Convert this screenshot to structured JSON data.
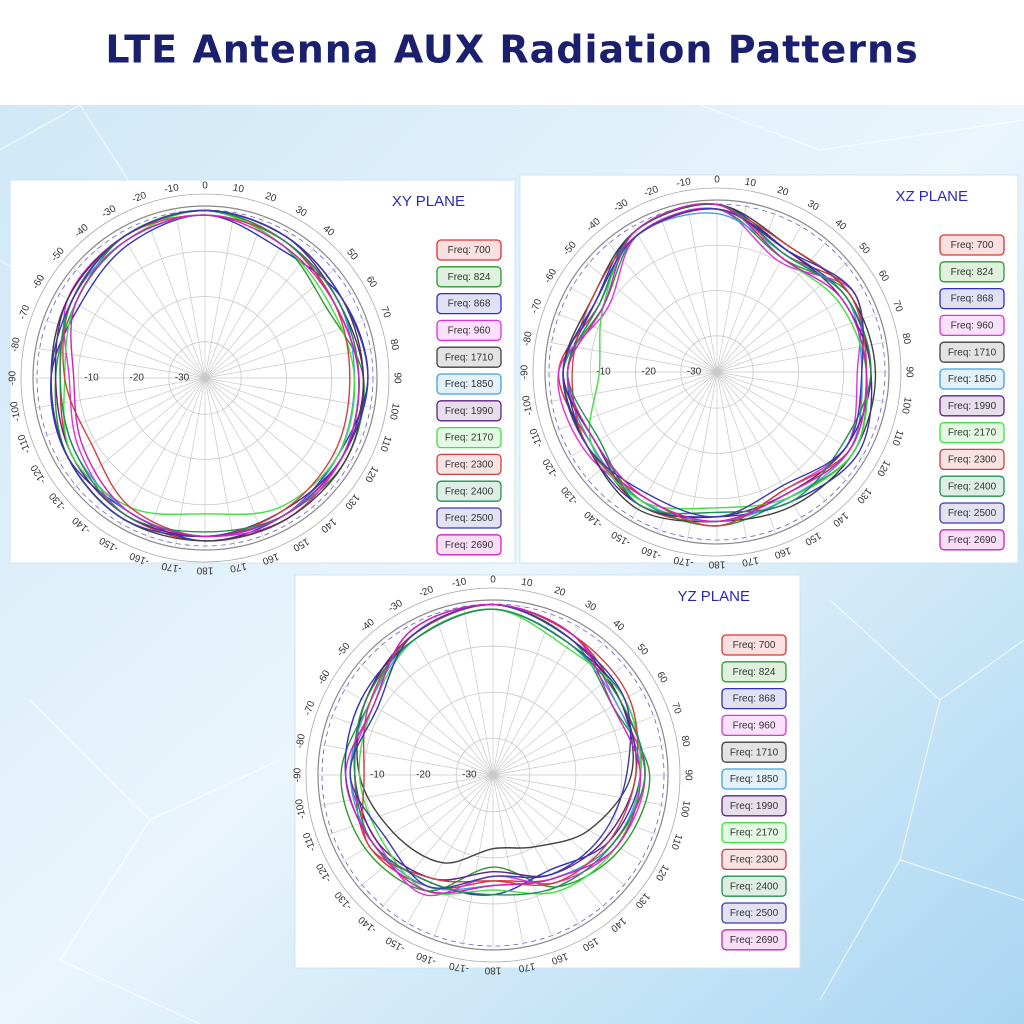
{
  "title": "LTE Antenna AUX Radiation Patterns",
  "chart_data": [
    {
      "type": "polar",
      "title": "XY PLANE",
      "legend": "right",
      "rlim": [
        -38,
        0
      ],
      "rticks": [
        -30,
        -20,
        -10
      ],
      "thetaticks": [
        0,
        10,
        20,
        30,
        40,
        50,
        60,
        70,
        80,
        90,
        100,
        110,
        120,
        130,
        140,
        150,
        160,
        170,
        180,
        -170,
        -160,
        -150,
        -140,
        -130,
        -120,
        -110,
        -100,
        -90,
        -80,
        -70,
        -60,
        -50,
        -40,
        -30,
        -20,
        -10
      ],
      "x": [
        0,
        30,
        60,
        90,
        120,
        150,
        180,
        210,
        240,
        270,
        300,
        330
      ],
      "series": [
        {
          "name": "Freq: 700",
          "color": "#e03030",
          "values": [
            -1,
            -3,
            -5,
            -4,
            -3,
            -2,
            -2,
            -3,
            -4,
            -6,
            -4,
            -2
          ]
        },
        {
          "name": "Freq: 824",
          "color": "#2a9a2a",
          "values": [
            -1,
            -4,
            -7,
            -3,
            -2,
            -3,
            -3,
            -2,
            -3,
            -5,
            -5,
            -2
          ]
        },
        {
          "name": "Freq: 868",
          "color": "#3030c0",
          "values": [
            -2,
            -5,
            -3,
            -2,
            -4,
            -3,
            -2,
            -4,
            -3,
            -4,
            -6,
            -4
          ]
        },
        {
          "name": "Freq: 960",
          "color": "#e030e0",
          "values": [
            -1,
            -3,
            -4,
            -4,
            -3,
            -2,
            -3,
            -3,
            -6,
            -8,
            -3,
            -2
          ]
        },
        {
          "name": "Freq: 1710",
          "color": "#404040",
          "values": [
            -1,
            -2,
            -3,
            -3,
            -2,
            -2,
            -2,
            -2,
            -3,
            -4,
            -3,
            -2
          ]
        },
        {
          "name": "Freq: 1850",
          "color": "#40a0e0",
          "values": [
            -2,
            -3,
            -4,
            -5,
            -4,
            -3,
            -3,
            -4,
            -5,
            -6,
            -4,
            -3
          ]
        },
        {
          "name": "Freq: 1990",
          "color": "#602080",
          "values": [
            -1,
            -2,
            -4,
            -3,
            -3,
            -4,
            -3,
            -3,
            -4,
            -5,
            -3,
            -2
          ]
        },
        {
          "name": "Freq: 2170",
          "color": "#40e040",
          "values": [
            -1,
            -4,
            -6,
            -5,
            -4,
            -5,
            -8,
            -5,
            -4,
            -7,
            -5,
            -3
          ]
        },
        {
          "name": "Freq: 2300",
          "color": "#d04040",
          "values": [
            -2,
            -3,
            -5,
            -6,
            -5,
            -4,
            -3,
            -5,
            -9,
            -7,
            -4,
            -2
          ]
        },
        {
          "name": "Freq: 2400",
          "color": "#209050",
          "values": [
            -1,
            -3,
            -4,
            -4,
            -3,
            -3,
            -4,
            -3,
            -5,
            -6,
            -4,
            -2
          ]
        },
        {
          "name": "Freq: 2500",
          "color": "#3a3ab0",
          "values": [
            -1,
            -2,
            -3,
            -2,
            -3,
            -3,
            -3,
            -2,
            -3,
            -4,
            -4,
            -2
          ]
        },
        {
          "name": "Freq: 2690",
          "color": "#d020c0",
          "values": [
            -2,
            -4,
            -5,
            -4,
            -3,
            -3,
            -3,
            -4,
            -7,
            -9,
            -5,
            -3
          ]
        }
      ]
    },
    {
      "type": "polar",
      "title": "XZ PLANE",
      "legend": "right",
      "rlim": [
        -38,
        0
      ],
      "rticks": [
        -30,
        -20,
        -10
      ],
      "thetaticks": [
        0,
        10,
        20,
        30,
        40,
        50,
        60,
        70,
        80,
        90,
        100,
        110,
        120,
        130,
        140,
        150,
        160,
        170,
        180,
        -170,
        -160,
        -150,
        -140,
        -130,
        -120,
        -110,
        -100,
        -90,
        -80,
        -70,
        -60,
        -50,
        -40,
        -30,
        -20,
        -10
      ],
      "x": [
        0,
        30,
        60,
        90,
        120,
        150,
        180,
        210,
        240,
        270,
        300,
        330
      ],
      "series": [
        {
          "name": "Freq: 700",
          "color": "#e03030",
          "values": [
            -1,
            -8,
            -3,
            -6,
            -4,
            -7,
            -5,
            -4,
            -6,
            -3,
            -8,
            -2
          ]
        },
        {
          "name": "Freq: 824",
          "color": "#2a9a2a",
          "values": [
            -2,
            -9,
            -4,
            -5,
            -3,
            -6,
            -4,
            -5,
            -7,
            -4,
            -9,
            -3
          ]
        },
        {
          "name": "Freq: 868",
          "color": "#3030c0",
          "values": [
            -1,
            -7,
            -5,
            -4,
            -2,
            -5,
            -6,
            -4,
            -5,
            -5,
            -7,
            -2
          ]
        },
        {
          "name": "Freq: 960",
          "color": "#e030e0",
          "values": [
            -2,
            -10,
            -3,
            -7,
            -5,
            -8,
            -4,
            -6,
            -4,
            -3,
            -10,
            -3
          ]
        },
        {
          "name": "Freq: 1710",
          "color": "#404040",
          "values": [
            -1,
            -6,
            -4,
            -3,
            -3,
            -4,
            -5,
            -3,
            -5,
            -4,
            -6,
            -2
          ]
        },
        {
          "name": "Freq: 1850",
          "color": "#40a0e0",
          "values": [
            -3,
            -8,
            -5,
            -6,
            -4,
            -6,
            -5,
            -5,
            -6,
            -5,
            -8,
            -3
          ]
        },
        {
          "name": "Freq: 1990",
          "color": "#602080",
          "values": [
            -2,
            -7,
            -6,
            -4,
            -5,
            -7,
            -6,
            -4,
            -7,
            -4,
            -7,
            -3
          ]
        },
        {
          "name": "Freq: 2170",
          "color": "#40e040",
          "values": [
            -1,
            -9,
            -7,
            -5,
            -3,
            -6,
            -8,
            -5,
            -6,
            -12,
            -9,
            -2
          ]
        },
        {
          "name": "Freq: 2300",
          "color": "#d04040",
          "values": [
            -2,
            -6,
            -4,
            -5,
            -4,
            -8,
            -4,
            -6,
            -5,
            -6,
            -6,
            -3
          ]
        },
        {
          "name": "Freq: 2400",
          "color": "#209050",
          "values": [
            -1,
            -8,
            -5,
            -4,
            -6,
            -5,
            -7,
            -4,
            -8,
            -5,
            -8,
            -2
          ]
        },
        {
          "name": "Freq: 2500",
          "color": "#3a3ab0",
          "values": [
            -2,
            -7,
            -3,
            -6,
            -5,
            -9,
            -6,
            -7,
            -5,
            -4,
            -7,
            -3
          ]
        },
        {
          "name": "Freq: 2690",
          "color": "#d020c0",
          "values": [
            -1,
            -9,
            -6,
            -5,
            -4,
            -7,
            -5,
            -6,
            -7,
            -5,
            -9,
            -2
          ]
        }
      ]
    },
    {
      "type": "polar",
      "title": "YZ PLANE",
      "legend": "right",
      "rlim": [
        -38,
        0
      ],
      "rticks": [
        -30,
        -20,
        -10
      ],
      "thetaticks": [
        0,
        10,
        20,
        30,
        40,
        50,
        60,
        70,
        80,
        90,
        100,
        110,
        120,
        130,
        140,
        150,
        160,
        170,
        180,
        -170,
        -160,
        -150,
        -140,
        -130,
        -120,
        -110,
        -100,
        -90,
        -80,
        -70,
        -60,
        -50,
        -40,
        -30,
        -20,
        -10
      ],
      "x": [
        0,
        30,
        60,
        90,
        120,
        150,
        180,
        210,
        240,
        270,
        300,
        330
      ],
      "series": [
        {
          "name": "Freq: 700",
          "color": "#e03030",
          "values": [
            -1,
            -3,
            -6,
            -5,
            -8,
            -12,
            -15,
            -10,
            -7,
            -8,
            -6,
            -3
          ]
        },
        {
          "name": "Freq: 824",
          "color": "#2a9a2a",
          "values": [
            -1,
            -4,
            -8,
            -4,
            -6,
            -10,
            -18,
            -9,
            -6,
            -5,
            -7,
            -3
          ]
        },
        {
          "name": "Freq: 868",
          "color": "#3030c0",
          "values": [
            -2,
            -5,
            -5,
            -6,
            -9,
            -14,
            -12,
            -11,
            -8,
            -6,
            -5,
            -4
          ]
        },
        {
          "name": "Freq: 960",
          "color": "#e030e0",
          "values": [
            -1,
            -3,
            -7,
            -5,
            -7,
            -11,
            -16,
            -8,
            -9,
            -7,
            -8,
            -2
          ]
        },
        {
          "name": "Freq: 1710",
          "color": "#404040",
          "values": [
            -1,
            -4,
            -6,
            -8,
            -14,
            -20,
            -22,
            -16,
            -13,
            -9,
            -6,
            -3
          ]
        },
        {
          "name": "Freq: 1850",
          "color": "#40a0e0",
          "values": [
            -2,
            -5,
            -7,
            -6,
            -8,
            -12,
            -14,
            -10,
            -8,
            -7,
            -7,
            -4
          ]
        },
        {
          "name": "Freq: 1990",
          "color": "#602080",
          "values": [
            -1,
            -4,
            -6,
            -7,
            -10,
            -13,
            -17,
            -12,
            -9,
            -8,
            -6,
            -3
          ]
        },
        {
          "name": "Freq: 2170",
          "color": "#40e040",
          "values": [
            -2,
            -6,
            -5,
            -6,
            -7,
            -9,
            -13,
            -9,
            -10,
            -9,
            -8,
            -4
          ]
        },
        {
          "name": "Freq: 2300",
          "color": "#d04040",
          "values": [
            -1,
            -3,
            -4,
            -7,
            -9,
            -11,
            -15,
            -12,
            -7,
            -10,
            -7,
            -3
          ]
        },
        {
          "name": "Freq: 2400",
          "color": "#209050",
          "values": [
            -2,
            -5,
            -6,
            -5,
            -8,
            -10,
            -12,
            -11,
            -8,
            -8,
            -6,
            -4
          ]
        },
        {
          "name": "Freq: 2500",
          "color": "#3a3ab0",
          "values": [
            -1,
            -4,
            -5,
            -9,
            -11,
            -13,
            -16,
            -10,
            -11,
            -7,
            -9,
            -3
          ]
        },
        {
          "name": "Freq: 2690",
          "color": "#d020c0",
          "values": [
            -1,
            -3,
            -8,
            -6,
            -7,
            -12,
            -14,
            -9,
            -8,
            -6,
            -8,
            -2
          ]
        }
      ]
    }
  ]
}
